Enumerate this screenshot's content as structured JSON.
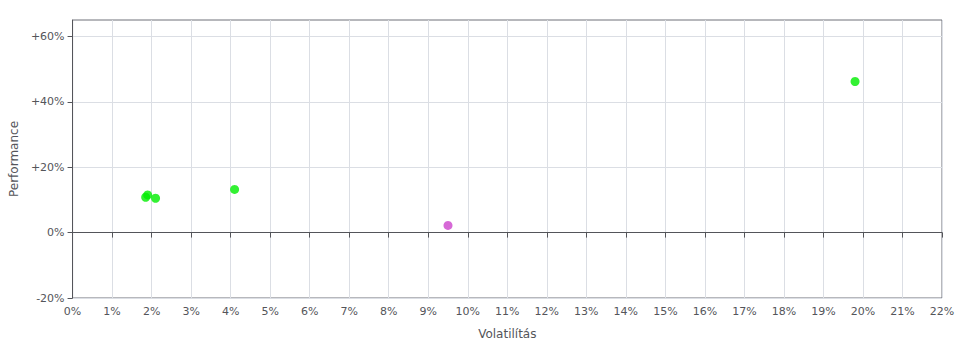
{
  "chart_data": {
    "type": "scatter",
    "xlabel": "Volatilítás",
    "ylabel": "Performance",
    "x": [
      0.019,
      0.021,
      0.0185,
      0.041,
      0.198,
      0.095
    ],
    "values": [
      0.115,
      0.105,
      0.108,
      0.132,
      0.462,
      0.022
    ],
    "colors": [
      "#00ee00",
      "#00ee00",
      "#00ee00",
      "#00ee00",
      "#00ee00",
      "#cc44cc"
    ],
    "xlim": [
      0.0,
      0.22
    ],
    "ylim": [
      -0.2,
      0.65
    ],
    "xticks": [
      {
        "value": 0.0,
        "label": "0%"
      },
      {
        "value": 0.01,
        "label": "1%"
      },
      {
        "value": 0.02,
        "label": "2%"
      },
      {
        "value": 0.03,
        "label": "3%"
      },
      {
        "value": 0.04,
        "label": "4%"
      },
      {
        "value": 0.05,
        "label": "5%"
      },
      {
        "value": 0.06,
        "label": "6%"
      },
      {
        "value": 0.07,
        "label": "7%"
      },
      {
        "value": 0.08,
        "label": "8%"
      },
      {
        "value": 0.09,
        "label": "9%"
      },
      {
        "value": 0.1,
        "label": "10%"
      },
      {
        "value": 0.11,
        "label": "11%"
      },
      {
        "value": 0.12,
        "label": "12%"
      },
      {
        "value": 0.13,
        "label": "13%"
      },
      {
        "value": 0.14,
        "label": "14%"
      },
      {
        "value": 0.15,
        "label": "15%"
      },
      {
        "value": 0.16,
        "label": "16%"
      },
      {
        "value": 0.17,
        "label": "17%"
      },
      {
        "value": 0.18,
        "label": "18%"
      },
      {
        "value": 0.19,
        "label": "19%"
      },
      {
        "value": 0.2,
        "label": "20%"
      },
      {
        "value": 0.21,
        "label": "21%"
      },
      {
        "value": 0.22,
        "label": "22%"
      }
    ],
    "yticks": [
      {
        "value": -0.2,
        "label": "-20%"
      },
      {
        "value": 0.0,
        "label": "0%"
      },
      {
        "value": 0.2,
        "label": "+20%"
      },
      {
        "value": 0.4,
        "label": "+40%"
      },
      {
        "value": 0.6,
        "label": "+60%"
      }
    ],
    "grid": true
  }
}
